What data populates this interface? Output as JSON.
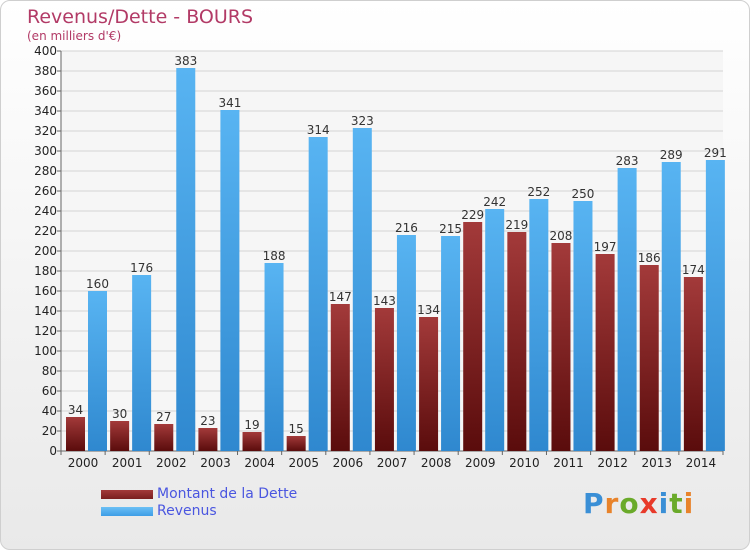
{
  "header": {
    "title": "Revenus/Dette - BOURS",
    "subtitle": "(en milliers d'€)"
  },
  "colors": {
    "dette": "#7a1e1e",
    "revenus": "#3d9de6"
  },
  "chart_data": {
    "type": "bar",
    "title": "Revenus/Dette - BOURS",
    "ylabel": "(en milliers d'€)",
    "xlabel": "",
    "ylim": [
      0,
      400
    ],
    "yticks": [
      0,
      20,
      40,
      60,
      80,
      100,
      120,
      140,
      160,
      180,
      200,
      220,
      240,
      260,
      280,
      300,
      320,
      340,
      360,
      380,
      400
    ],
    "grid": true,
    "legend_position": "bottom-left",
    "categories": [
      "2000",
      "2001",
      "2002",
      "2003",
      "2004",
      "2005",
      "2006",
      "2007",
      "2008",
      "2009",
      "2010",
      "2011",
      "2012",
      "2013",
      "2014"
    ],
    "series": [
      {
        "name": "Montant de la Dette",
        "values": [
          34,
          30,
          27,
          23,
          19,
          15,
          147,
          143,
          134,
          229,
          219,
          208,
          197,
          186,
          174
        ]
      },
      {
        "name": "Revenus",
        "values": [
          160,
          176,
          383,
          341,
          188,
          314,
          323,
          216,
          215,
          242,
          252,
          250,
          283,
          289,
          291
        ]
      }
    ]
  },
  "logo": {
    "text": "Proxiti",
    "letter_colors": [
      "#3a8fd6",
      "#e8832a",
      "#6aaa2a",
      "#e83a2a",
      "#3a8fd6",
      "#6aaa2a",
      "#e8832a"
    ]
  }
}
